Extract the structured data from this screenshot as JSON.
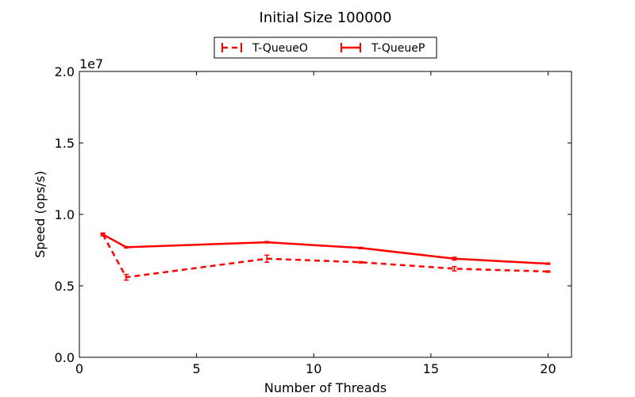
{
  "chart_data": {
    "type": "line",
    "title": "Initial Size 100000",
    "xlabel": "Number of Threads",
    "ylabel": "Speed (ops/s)",
    "y_offset_label": "1e7",
    "xlim": [
      0,
      21
    ],
    "ylim": [
      0,
      2.0
    ],
    "y_scale_factor": 10000000,
    "xticks": [
      0,
      5,
      10,
      15,
      20
    ],
    "xtick_labels": [
      "0",
      "5",
      "10",
      "15",
      "20"
    ],
    "yticks": [
      0,
      0.5,
      1.0,
      1.5,
      2.0
    ],
    "ytick_labels": [
      "0.0",
      "0.5",
      "1.0",
      "1.5",
      "2.0"
    ],
    "grid": false,
    "legend_position": "top-center",
    "x": [
      1,
      2,
      8,
      12,
      16,
      20
    ],
    "series": [
      {
        "name": "T-QueueO",
        "style": "dashed",
        "color": "#ff0000",
        "values": [
          0.86,
          0.56,
          0.69,
          0.665,
          0.62,
          0.6
        ],
        "errors": [
          0.01,
          0.02,
          0.025,
          0.005,
          0.015,
          0.005
        ]
      },
      {
        "name": "T-QueueP",
        "style": "solid",
        "color": "#ff0000",
        "values": [
          0.86,
          0.77,
          0.805,
          0.765,
          0.69,
          0.655
        ],
        "errors": [
          0.005,
          0.005,
          0.005,
          0.005,
          0.01,
          0.005
        ]
      }
    ]
  }
}
